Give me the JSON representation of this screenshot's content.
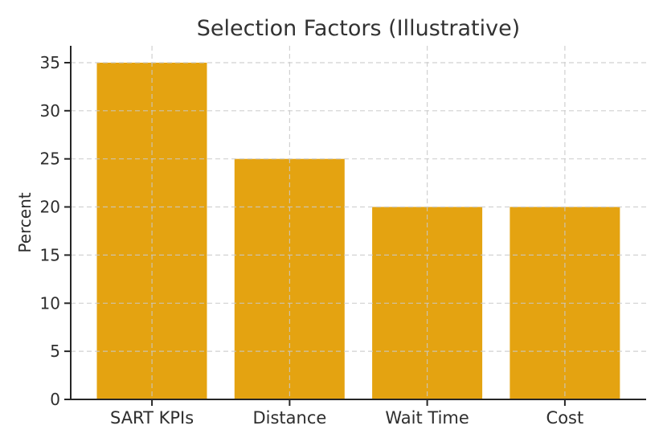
{
  "figure": {
    "background": "#ffffff"
  },
  "chart_data": {
    "type": "bar",
    "title": "Selection Factors (Illustrative)",
    "categories": [
      "SART KPIs",
      "Distance",
      "Wait Time",
      "Cost"
    ],
    "values": [
      35,
      25,
      20,
      20
    ],
    "xlabel": "",
    "ylabel": "Percent",
    "ylim": [
      0,
      36.75
    ],
    "yticks": [
      0,
      5,
      10,
      15,
      20,
      25,
      30,
      35
    ],
    "grid": "both-dashed-over-bars",
    "legend_position": "none",
    "colors": {
      "bar": "#E4A311",
      "grid": "#c9c9c9",
      "axis": "#262626",
      "text": "#2e2e2e",
      "title": "#323232"
    }
  }
}
